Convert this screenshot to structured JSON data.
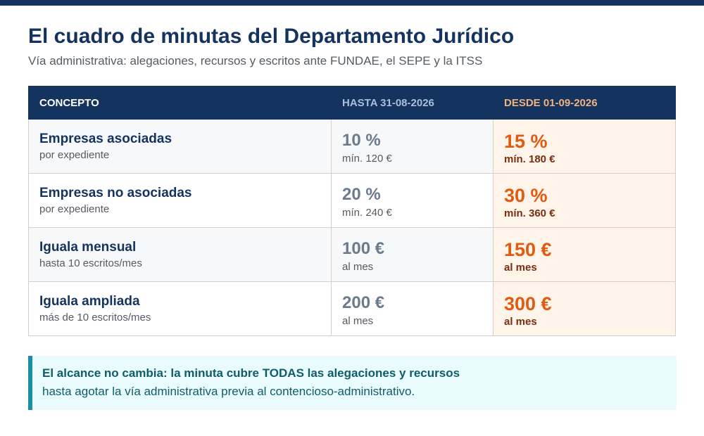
{
  "header": {
    "title": "El cuadro de minutas del Departamento Jurídico",
    "subtitle": "Vía administrativa: alegaciones, recursos y escritos ante FUNDAE, el SEPE y la ITSS"
  },
  "table": {
    "columns": [
      "CONCEPTO",
      "HASTA 31-08-2026",
      "DESDE 01-09-2026"
    ],
    "rows": [
      {
        "concept": "Empresas asociadas",
        "concept_note": "por expediente",
        "old_value": "10 %",
        "old_note": "mín. 120 €",
        "new_value": "15 %",
        "new_note": "mín. 180 €"
      },
      {
        "concept": "Empresas no asociadas",
        "concept_note": "por expediente",
        "old_value": "20 %",
        "old_note": "mín. 240 €",
        "new_value": "30 %",
        "new_note": "mín. 360 €"
      },
      {
        "concept": "Iguala mensual",
        "concept_note": "hasta 10 escritos/mes",
        "old_value": "100 €",
        "old_note": "al mes",
        "new_value": "150 €",
        "new_note": "al mes"
      },
      {
        "concept": "Iguala ampliada",
        "concept_note": "más de 10 escritos/mes",
        "old_value": "200 €",
        "old_note": "al mes",
        "new_value": "300 €",
        "new_note": "al mes"
      }
    ]
  },
  "callout": {
    "line1": "El alcance no cambia: la minuta cubre TODAS las alegaciones y recursos",
    "line2": "hasta agotar la vía administrativa previa al contencioso-administrativo."
  },
  "colors": {
    "brand_navy": "#14335e",
    "new_rate_orange": "#e05a12",
    "callout_accent": "#1a8fa3"
  }
}
